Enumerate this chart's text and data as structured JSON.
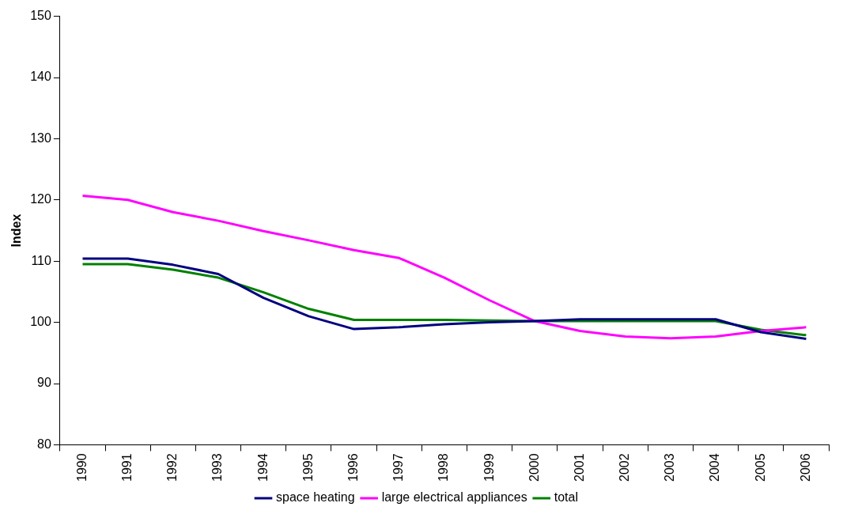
{
  "chart_data": {
    "type": "line",
    "ylabel": "Index",
    "categories": [
      "1990",
      "1991",
      "1992",
      "1993",
      "1994",
      "1995",
      "1996",
      "1997",
      "1998",
      "1999",
      "2000",
      "2001",
      "2002",
      "2003",
      "2004",
      "2005",
      "2006"
    ],
    "series": [
      {
        "name": "space heating",
        "color": "#000080",
        "values": [
          110.4,
          110.4,
          109.4,
          107.9,
          104.0,
          101.0,
          98.9,
          99.2,
          99.7,
          100.0,
          100.2,
          100.5,
          100.5,
          100.5,
          100.5,
          98.4,
          97.3
        ]
      },
      {
        "name": "large electrical appliances",
        "color": "#ff00ff",
        "values": [
          120.7,
          120.0,
          118.0,
          116.6,
          114.9,
          113.4,
          111.8,
          110.5,
          107.3,
          103.6,
          100.2,
          98.6,
          97.7,
          97.4,
          97.7,
          98.6,
          99.2
        ]
      },
      {
        "name": "total",
        "color": "#008000",
        "values": [
          109.5,
          109.5,
          108.6,
          107.3,
          104.9,
          102.2,
          100.4,
          100.4,
          100.4,
          100.3,
          100.2,
          100.2,
          100.2,
          100.2,
          100.2,
          98.8,
          97.9
        ]
      }
    ],
    "ylim": [
      80,
      150
    ],
    "yticks": [
      80,
      90,
      100,
      110,
      120,
      130,
      140,
      150
    ],
    "grid": false,
    "legend": "bottom",
    "marker": "none",
    "line_style": "solid"
  }
}
